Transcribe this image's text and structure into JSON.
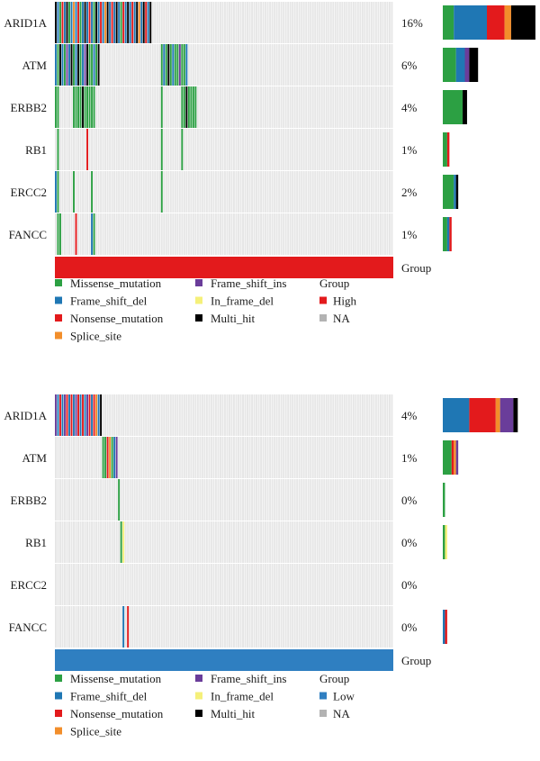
{
  "colors": {
    "Missense_mutation": "#2ca043",
    "Frame_shift_del": "#1f77b4",
    "Nonsense_mutation": "#e31a1c",
    "Splice_site": "#f28e2b",
    "Frame_shift_ins": "#6a3d9a",
    "In_frame_del": "#f5f07a",
    "Multi_hit": "#000000",
    "background": "#e6e6e6",
    "High": "#e31a1c",
    "Low": "#2f7fc1",
    "NA": "#b3b3b3"
  },
  "chart_data": [
    {
      "type": "heatmap",
      "group_label": "Group",
      "group_value": "High",
      "n_samples": 150,
      "genes": [
        {
          "name": "ARID1A",
          "pct": "16%",
          "bar": [
            [
              "Missense_mutation",
              5
            ],
            [
              "Frame_shift_del",
              15
            ],
            [
              "Nonsense_mutation",
              8
            ],
            [
              "Splice_site",
              3
            ],
            [
              "Multi_hit",
              11
            ]
          ],
          "cells": [
            [
              0,
              "Multi_hit"
            ],
            [
              1,
              "Frame_shift_del"
            ],
            [
              2,
              "Missense_mutation"
            ],
            [
              3,
              "Nonsense_mutation"
            ],
            [
              4,
              "Frame_shift_del"
            ],
            [
              5,
              "Multi_hit"
            ],
            [
              6,
              "Missense_mutation"
            ],
            [
              7,
              "Frame_shift_del"
            ],
            [
              8,
              "Splice_site"
            ],
            [
              9,
              "Frame_shift_del"
            ],
            [
              10,
              "Nonsense_mutation"
            ],
            [
              11,
              "Missense_mutation"
            ],
            [
              12,
              "Frame_shift_del"
            ],
            [
              13,
              "Multi_hit"
            ],
            [
              14,
              "Frame_shift_del"
            ],
            [
              15,
              "Nonsense_mutation"
            ],
            [
              16,
              "Frame_shift_del"
            ],
            [
              17,
              "Missense_mutation"
            ],
            [
              18,
              "Multi_hit"
            ],
            [
              19,
              "Frame_shift_del"
            ],
            [
              20,
              "Nonsense_mutation"
            ],
            [
              21,
              "Frame_shift_del"
            ],
            [
              22,
              "Splice_site"
            ],
            [
              23,
              "Multi_hit"
            ],
            [
              24,
              "Frame_shift_del"
            ],
            [
              25,
              "Nonsense_mutation"
            ],
            [
              26,
              "Frame_shift_del"
            ],
            [
              27,
              "Multi_hit"
            ],
            [
              28,
              "Frame_shift_del"
            ],
            [
              29,
              "Missense_mutation"
            ],
            [
              30,
              "Nonsense_mutation"
            ],
            [
              31,
              "Frame_shift_del"
            ],
            [
              32,
              "Multi_hit"
            ],
            [
              33,
              "Frame_shift_del"
            ],
            [
              34,
              "Nonsense_mutation"
            ],
            [
              35,
              "Frame_shift_del"
            ],
            [
              36,
              "Multi_hit"
            ],
            [
              37,
              "Splice_site"
            ],
            [
              38,
              "Frame_shift_del"
            ],
            [
              39,
              "Multi_hit"
            ],
            [
              40,
              "Nonsense_mutation"
            ],
            [
              41,
              "Frame_shift_del"
            ],
            [
              42,
              "Multi_hit"
            ]
          ]
        },
        {
          "name": "ATM",
          "pct": "6%",
          "bar": [
            [
              "Missense_mutation",
              6
            ],
            [
              "Frame_shift_del",
              4
            ],
            [
              "Frame_shift_ins",
              2
            ],
            [
              "Multi_hit",
              4
            ]
          ],
          "cells": [
            [
              0,
              "Frame_shift_del"
            ],
            [
              1,
              "Missense_mutation"
            ],
            [
              2,
              "Multi_hit"
            ],
            [
              3,
              "Frame_shift_del"
            ],
            [
              4,
              "Missense_mutation"
            ],
            [
              5,
              "Frame_shift_ins"
            ],
            [
              6,
              "Frame_shift_del"
            ],
            [
              7,
              "Multi_hit"
            ],
            [
              8,
              "Missense_mutation"
            ],
            [
              9,
              "Frame_shift_del"
            ],
            [
              10,
              "Multi_hit"
            ],
            [
              11,
              "Missense_mutation"
            ],
            [
              12,
              "Frame_shift_del"
            ],
            [
              13,
              "Frame_shift_ins"
            ],
            [
              14,
              "Multi_hit"
            ],
            [
              15,
              "Missense_mutation"
            ],
            [
              16,
              "Missense_mutation"
            ],
            [
              17,
              "Frame_shift_del"
            ],
            [
              18,
              "Missense_mutation"
            ],
            [
              19,
              "Multi_hit"
            ],
            [
              47,
              "Missense_mutation"
            ],
            [
              48,
              "Frame_shift_del"
            ],
            [
              49,
              "Missense_mutation"
            ],
            [
              50,
              "Multi_hit"
            ],
            [
              51,
              "Missense_mutation"
            ],
            [
              52,
              "Frame_shift_del"
            ],
            [
              53,
              "Missense_mutation"
            ],
            [
              54,
              "Missense_mutation"
            ],
            [
              55,
              "Frame_shift_ins"
            ],
            [
              56,
              "Missense_mutation"
            ],
            [
              57,
              "Missense_mutation"
            ],
            [
              58,
              "Frame_shift_del"
            ]
          ]
        },
        {
          "name": "ERBB2",
          "pct": "4%",
          "bar": [
            [
              "Missense_mutation",
              9
            ],
            [
              "Multi_hit",
              2
            ]
          ],
          "cells": [
            [
              0,
              "Missense_mutation"
            ],
            [
              1,
              "Missense_mutation"
            ],
            [
              8,
              "Missense_mutation"
            ],
            [
              9,
              "Missense_mutation"
            ],
            [
              10,
              "Missense_mutation"
            ],
            [
              11,
              "Missense_mutation"
            ],
            [
              12,
              "Multi_hit"
            ],
            [
              13,
              "Missense_mutation"
            ],
            [
              14,
              "Missense_mutation"
            ],
            [
              15,
              "Missense_mutation"
            ],
            [
              16,
              "Missense_mutation"
            ],
            [
              17,
              "Missense_mutation"
            ],
            [
              47,
              "Missense_mutation"
            ],
            [
              56,
              "Missense_mutation"
            ],
            [
              57,
              "Missense_mutation"
            ],
            [
              58,
              "Multi_hit"
            ],
            [
              59,
              "Missense_mutation"
            ],
            [
              60,
              "Missense_mutation"
            ],
            [
              61,
              "Missense_mutation"
            ],
            [
              62,
              "Missense_mutation"
            ]
          ]
        },
        {
          "name": "RB1",
          "pct": "1%",
          "bar": [
            [
              "Missense_mutation",
              2
            ],
            [
              "Nonsense_mutation",
              1
            ]
          ],
          "cells": [
            [
              1,
              "Missense_mutation"
            ],
            [
              14,
              "Nonsense_mutation"
            ],
            [
              47,
              "Missense_mutation"
            ],
            [
              56,
              "Missense_mutation"
            ]
          ]
        },
        {
          "name": "ERCC2",
          "pct": "2%",
          "bar": [
            [
              "Missense_mutation",
              5
            ],
            [
              "Frame_shift_del",
              1
            ],
            [
              "Multi_hit",
              1
            ]
          ],
          "cells": [
            [
              0,
              "Frame_shift_del"
            ],
            [
              1,
              "Missense_mutation"
            ],
            [
              8,
              "Missense_mutation"
            ],
            [
              16,
              "Missense_mutation"
            ],
            [
              47,
              "Missense_mutation"
            ]
          ]
        },
        {
          "name": "FANCC",
          "pct": "1%",
          "bar": [
            [
              "Missense_mutation",
              2
            ],
            [
              "Frame_shift_del",
              1
            ],
            [
              "Nonsense_mutation",
              1
            ]
          ],
          "cells": [
            [
              1,
              "Missense_mutation"
            ],
            [
              2,
              "Missense_mutation"
            ],
            [
              9,
              "Nonsense_mutation"
            ],
            [
              16,
              "Frame_shift_del"
            ],
            [
              17,
              "Missense_mutation"
            ]
          ]
        }
      ]
    },
    {
      "type": "heatmap",
      "group_label": "Group",
      "group_value": "Low",
      "n_samples": 150,
      "genes": [
        {
          "name": "ARID1A",
          "pct": "4%",
          "bar": [
            [
              "Frame_shift_del",
              12
            ],
            [
              "Nonsense_mutation",
              12
            ],
            [
              "Splice_site",
              2
            ],
            [
              "Frame_shift_ins",
              6
            ],
            [
              "Multi_hit",
              2
            ]
          ],
          "cells": [
            [
              0,
              "Frame_shift_ins"
            ],
            [
              1,
              "Frame_shift_del"
            ],
            [
              2,
              "Nonsense_mutation"
            ],
            [
              3,
              "Frame_shift_del"
            ],
            [
              4,
              "Frame_shift_ins"
            ],
            [
              5,
              "Nonsense_mutation"
            ],
            [
              6,
              "Frame_shift_del"
            ],
            [
              7,
              "Nonsense_mutation"
            ],
            [
              8,
              "Frame_shift_del"
            ],
            [
              9,
              "Frame_shift_ins"
            ],
            [
              10,
              "Nonsense_mutation"
            ],
            [
              11,
              "Frame_shift_del"
            ],
            [
              12,
              "Nonsense_mutation"
            ],
            [
              13,
              "Frame_shift_del"
            ],
            [
              14,
              "Frame_shift_ins"
            ],
            [
              15,
              "Nonsense_mutation"
            ],
            [
              16,
              "Frame_shift_del"
            ],
            [
              17,
              "Nonsense_mutation"
            ],
            [
              18,
              "Splice_site"
            ],
            [
              19,
              "Frame_shift_del"
            ],
            [
              20,
              "Multi_hit"
            ]
          ]
        },
        {
          "name": "ATM",
          "pct": "1%",
          "bar": [
            [
              "Missense_mutation",
              4
            ],
            [
              "Nonsense_mutation",
              1
            ],
            [
              "Splice_site",
              1
            ],
            [
              "Frame_shift_ins",
              1
            ]
          ],
          "cells": [
            [
              21,
              "Missense_mutation"
            ],
            [
              22,
              "Missense_mutation"
            ],
            [
              23,
              "Nonsense_mutation"
            ],
            [
              24,
              "Splice_site"
            ],
            [
              25,
              "Missense_mutation"
            ],
            [
              26,
              "Frame_shift_del"
            ],
            [
              27,
              "Frame_shift_ins"
            ]
          ]
        },
        {
          "name": "ERBB2",
          "pct": "0%",
          "bar": [
            [
              "Missense_mutation",
              1
            ]
          ],
          "cells": [
            [
              28,
              "Missense_mutation"
            ]
          ]
        },
        {
          "name": "RB1",
          "pct": "0%",
          "bar": [
            [
              "Missense_mutation",
              1
            ],
            [
              "In_frame_del",
              1
            ]
          ],
          "cells": [
            [
              29,
              "Missense_mutation"
            ],
            [
              30,
              "In_frame_del"
            ]
          ]
        },
        {
          "name": "ERCC2",
          "pct": "0%",
          "bar": [],
          "cells": []
        },
        {
          "name": "FANCC",
          "pct": "0%",
          "bar": [
            [
              "Frame_shift_del",
              1
            ],
            [
              "Nonsense_mutation",
              1
            ]
          ],
          "cells": [
            [
              30,
              "Frame_shift_del"
            ],
            [
              32,
              "Nonsense_mutation"
            ]
          ]
        }
      ]
    }
  ],
  "legends": [
    {
      "col1": [
        "Missense_mutation",
        "Frame_shift_del",
        "Nonsense_mutation",
        "Splice_site"
      ],
      "col2": [
        "Frame_shift_ins",
        "In_frame_del",
        "Multi_hit"
      ],
      "group_title": "Group",
      "group_items": [
        "High",
        "NA"
      ]
    },
    {
      "col1": [
        "Missense_mutation",
        "Frame_shift_del",
        "Nonsense_mutation",
        "Splice_site"
      ],
      "col2": [
        "Frame_shift_ins",
        "In_frame_del",
        "Multi_hit"
      ],
      "group_title": "Group",
      "group_items": [
        "Low",
        "NA"
      ]
    }
  ]
}
